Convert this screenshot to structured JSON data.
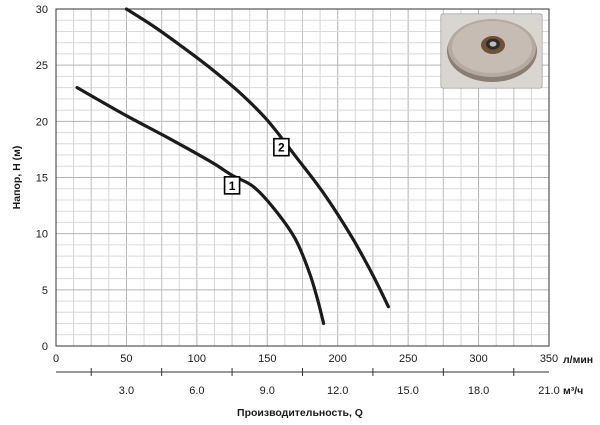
{
  "chart_data": {
    "type": "line",
    "xlabel": "Производительность, Q",
    "ylabel": "Напор, H (м)",
    "x_unit_primary": "л/мин",
    "x_unit_secondary": "м³/ч",
    "xlim": [
      0,
      350
    ],
    "ylim": [
      0,
      30
    ],
    "x_ticks_primary": [
      "0",
      "50",
      "100",
      "150",
      "200",
      "250",
      "300",
      "350"
    ],
    "x_tick_values_primary": [
      0,
      50,
      100,
      150,
      200,
      250,
      300,
      350
    ],
    "x_ticks_secondary": [
      "3.0",
      "6.0",
      "9.0",
      "12.0",
      "15.0",
      "18.0",
      "21.0"
    ],
    "x_tick_values_secondary_lpm": [
      50,
      100,
      150,
      200,
      250,
      300,
      350
    ],
    "y_ticks": [
      "0",
      "5",
      "10",
      "15",
      "20",
      "25",
      "30"
    ],
    "y_tick_values": [
      0,
      5,
      10,
      15,
      20,
      25,
      30
    ],
    "grid": true,
    "series": [
      {
        "name": "1",
        "x": [
          15,
          50,
          80,
          110,
          125,
          140,
          155,
          170,
          180,
          186,
          190
        ],
        "y": [
          23,
          20.5,
          18.5,
          16.4,
          15.2,
          14.2,
          12.2,
          9.5,
          6.5,
          4,
          2
        ],
        "label_at": [
          125,
          14.3
        ]
      },
      {
        "name": "2",
        "x": [
          50,
          70,
          90,
          110,
          130,
          150,
          170,
          190,
          210,
          225,
          236
        ],
        "y": [
          30,
          28.4,
          26.6,
          24.7,
          22.6,
          20.1,
          16.9,
          13.6,
          9.7,
          6.3,
          3.5
        ],
        "label_at": [
          160,
          17.7
        ]
      }
    ],
    "inset_image": "pump-impeller-photo"
  }
}
